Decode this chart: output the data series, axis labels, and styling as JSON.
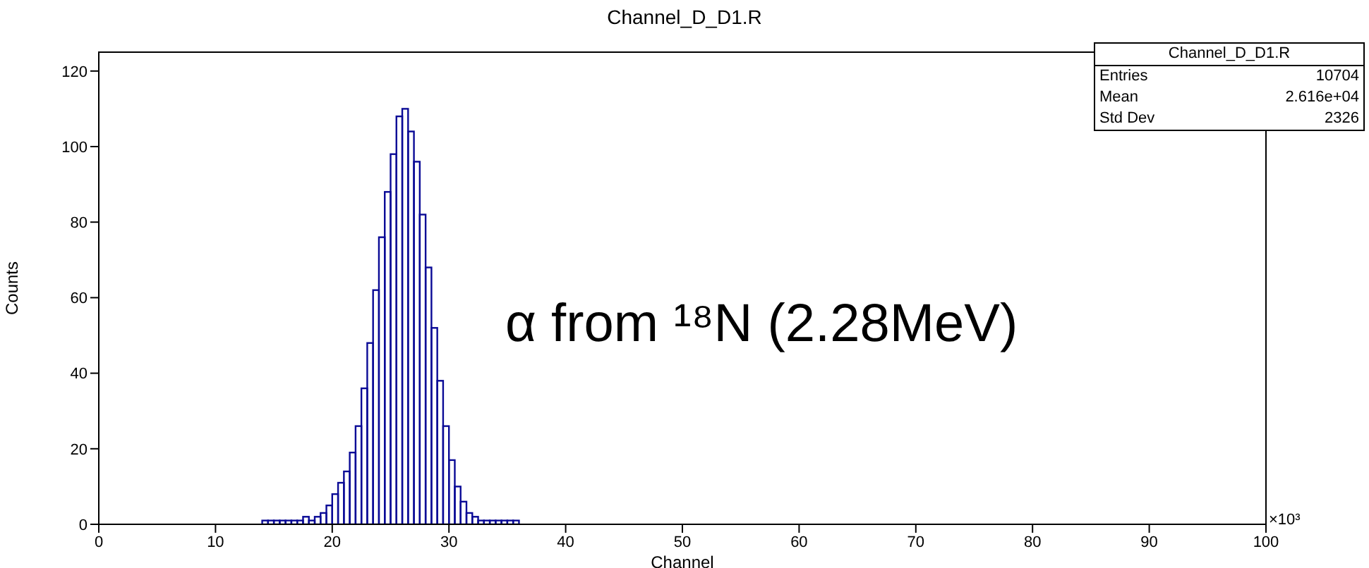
{
  "chart_data": {
    "type": "histogram",
    "title": "Channel_D_D1.R",
    "xlabel": "Channel",
    "ylabel": "Counts",
    "bins": [
      14,
      14.5,
      15,
      15.5,
      16,
      16.5,
      17,
      17.5,
      18,
      18.5,
      19,
      19.5,
      20,
      20.5,
      21,
      21.5,
      22,
      22.5,
      23,
      23.5,
      24,
      24.5,
      25,
      25.5,
      26,
      26.5,
      27,
      27.5,
      28,
      28.5,
      29,
      29.5,
      30,
      30.5,
      31,
      31.5,
      32,
      32.5,
      33,
      33.5,
      34,
      34.5,
      35,
      35.5,
      36
    ],
    "values": [
      1,
      1,
      1,
      1,
      1,
      1,
      1,
      2,
      1,
      2,
      3,
      5,
      8,
      11,
      14,
      19,
      26,
      36,
      48,
      62,
      76,
      88,
      98,
      108,
      110,
      104,
      96,
      82,
      68,
      52,
      38,
      26,
      17,
      10,
      6,
      3,
      2,
      1,
      1,
      1,
      1,
      1,
      1,
      1
    ],
    "color": "#0a0a96",
    "xlim": [
      0,
      100
    ],
    "ylim": [
      0,
      125
    ],
    "xticks": [
      0,
      10,
      20,
      30,
      40,
      50,
      60,
      70,
      80,
      90,
      100
    ],
    "yticks": [
      0,
      20,
      40,
      60,
      80,
      100,
      120
    ],
    "grid": false,
    "legend": false,
    "annotations": [
      "α from ¹⁸N (2.28MeV)",
      "×10³",
      "Channel_D_D1.R",
      "Entries",
      "10704",
      "Mean",
      "2.616e+04",
      "Std Dev",
      "2326"
    ]
  }
}
